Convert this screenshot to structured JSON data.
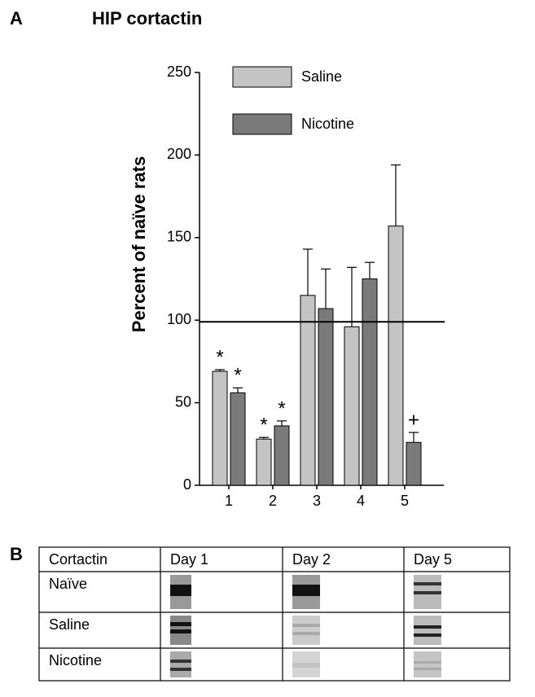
{
  "chart_data": {
    "type": "bar",
    "panel_label": "A",
    "title": "HIP cortactin",
    "ylabel": "Percent of naïve rats",
    "categories": [
      "1",
      "2",
      "3",
      "4",
      "5"
    ],
    "series": [
      {
        "name": "Saline",
        "color": "#c4c4c4",
        "values": [
          69,
          28,
          115,
          96,
          157
        ],
        "errors": [
          1,
          1,
          28,
          36,
          37
        ],
        "markers": [
          "*",
          "*",
          null,
          null,
          null
        ]
      },
      {
        "name": "Nicotine",
        "color": "#7a7a7a",
        "values": [
          56,
          36,
          107,
          125,
          26
        ],
        "errors": [
          3,
          3,
          24,
          10,
          6
        ],
        "markers": [
          "*",
          "*",
          null,
          null,
          "+"
        ]
      }
    ],
    "ylim": [
      0,
      250
    ],
    "yticks": [
      0,
      50,
      100,
      150,
      200,
      250
    ],
    "hline": 99,
    "legend": "top-left"
  },
  "panel_b": {
    "label": "B",
    "header": [
      "Cortactin",
      "Day 1",
      "Day 2",
      "Day 5"
    ],
    "rows": [
      [
        "Naïve"
      ],
      [
        "Saline"
      ],
      [
        "Nicotine"
      ]
    ]
  }
}
